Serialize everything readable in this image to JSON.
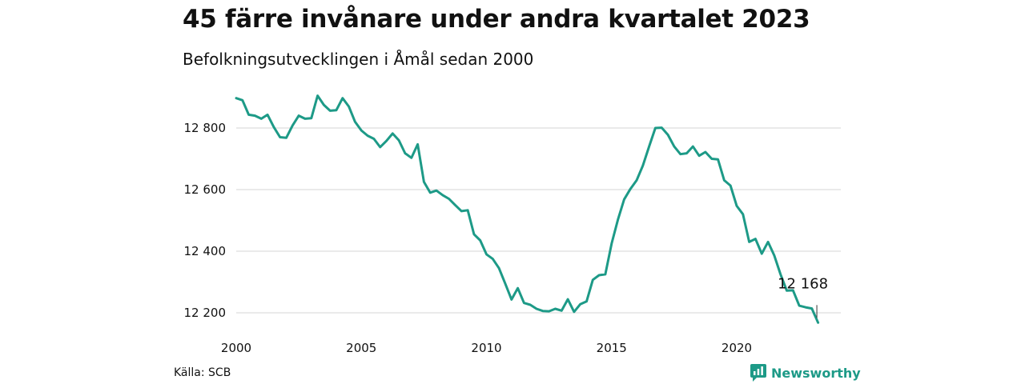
{
  "header": {
    "title": "45 färre invånare under andra kvartalet 2023",
    "subtitle": "Befolkningsutvecklingen i Åmål sedan 2000"
  },
  "footer": {
    "source": "Källa: SCB",
    "brand": "Newsworthy"
  },
  "colors": {
    "line": "#1d9a87",
    "grid": "#dddddd",
    "brand": "#1d9a87"
  },
  "chart_data": {
    "type": "line",
    "title": "45 färre invånare under andra kvartalet 2023",
    "subtitle": "Befolkningsutvecklingen i Åmål sedan 2000",
    "xlabel": "",
    "ylabel": "",
    "x_ticks": [
      2000,
      2005,
      2010,
      2015,
      2020
    ],
    "y_ticks": [
      12200,
      12400,
      12600,
      12800
    ],
    "y_tick_labels": [
      "12 200",
      "12 400",
      "12 600",
      "12 800"
    ],
    "ylim": [
      12160,
      12910
    ],
    "xlim": [
      2000,
      2023.5
    ],
    "grid": true,
    "end_label": "12 168",
    "series": [
      {
        "values": [
          [
            2000.0,
            12897
          ],
          [
            2000.25,
            12890
          ],
          [
            2000.5,
            12843
          ],
          [
            2000.75,
            12840
          ],
          [
            2001.0,
            12830
          ],
          [
            2001.25,
            12843
          ],
          [
            2001.5,
            12803
          ],
          [
            2001.75,
            12770
          ],
          [
            2002.0,
            12768
          ],
          [
            2002.25,
            12808
          ],
          [
            2002.5,
            12840
          ],
          [
            2002.75,
            12830
          ],
          [
            2003.0,
            12832
          ],
          [
            2003.25,
            12905
          ],
          [
            2003.5,
            12875
          ],
          [
            2003.75,
            12856
          ],
          [
            2004.0,
            12858
          ],
          [
            2004.25,
            12897
          ],
          [
            2004.5,
            12870
          ],
          [
            2004.75,
            12820
          ],
          [
            2005.0,
            12792
          ],
          [
            2005.25,
            12775
          ],
          [
            2005.5,
            12765
          ],
          [
            2005.75,
            12738
          ],
          [
            2006.0,
            12758
          ],
          [
            2006.25,
            12782
          ],
          [
            2006.5,
            12760
          ],
          [
            2006.75,
            12718
          ],
          [
            2007.0,
            12703
          ],
          [
            2007.25,
            12747
          ],
          [
            2007.5,
            12625
          ],
          [
            2007.75,
            12590
          ],
          [
            2008.0,
            12597
          ],
          [
            2008.25,
            12582
          ],
          [
            2008.5,
            12570
          ],
          [
            2008.75,
            12550
          ],
          [
            2009.0,
            12530
          ],
          [
            2009.25,
            12533
          ],
          [
            2009.5,
            12455
          ],
          [
            2009.75,
            12435
          ],
          [
            2010.0,
            12390
          ],
          [
            2010.25,
            12375
          ],
          [
            2010.5,
            12345
          ],
          [
            2010.75,
            12295
          ],
          [
            2011.0,
            12243
          ],
          [
            2011.25,
            12280
          ],
          [
            2011.5,
            12232
          ],
          [
            2011.75,
            12226
          ],
          [
            2012.0,
            12213
          ],
          [
            2012.25,
            12206
          ],
          [
            2012.5,
            12205
          ],
          [
            2012.75,
            12213
          ],
          [
            2013.0,
            12207
          ],
          [
            2013.25,
            12244
          ],
          [
            2013.5,
            12203
          ],
          [
            2013.75,
            12228
          ],
          [
            2014.0,
            12237
          ],
          [
            2014.25,
            12307
          ],
          [
            2014.5,
            12322
          ],
          [
            2014.75,
            12325
          ],
          [
            2015.0,
            12425
          ],
          [
            2015.25,
            12502
          ],
          [
            2015.5,
            12568
          ],
          [
            2015.75,
            12602
          ],
          [
            2016.0,
            12630
          ],
          [
            2016.25,
            12678
          ],
          [
            2016.5,
            12740
          ],
          [
            2016.75,
            12800
          ],
          [
            2017.0,
            12801
          ],
          [
            2017.25,
            12778
          ],
          [
            2017.5,
            12740
          ],
          [
            2017.75,
            12715
          ],
          [
            2018.0,
            12718
          ],
          [
            2018.25,
            12740
          ],
          [
            2018.5,
            12710
          ],
          [
            2018.75,
            12722
          ],
          [
            2019.0,
            12700
          ],
          [
            2019.25,
            12698
          ],
          [
            2019.5,
            12630
          ],
          [
            2019.75,
            12613
          ],
          [
            2020.0,
            12547
          ],
          [
            2020.25,
            12520
          ],
          [
            2020.5,
            12430
          ],
          [
            2020.75,
            12440
          ],
          [
            2021.0,
            12392
          ],
          [
            2021.25,
            12430
          ],
          [
            2021.5,
            12386
          ],
          [
            2021.75,
            12325
          ],
          [
            2022.0,
            12272
          ],
          [
            2022.25,
            12273
          ],
          [
            2022.5,
            12223
          ],
          [
            2022.75,
            12218
          ],
          [
            2023.0,
            12214
          ],
          [
            2023.25,
            12168
          ]
        ]
      }
    ]
  }
}
